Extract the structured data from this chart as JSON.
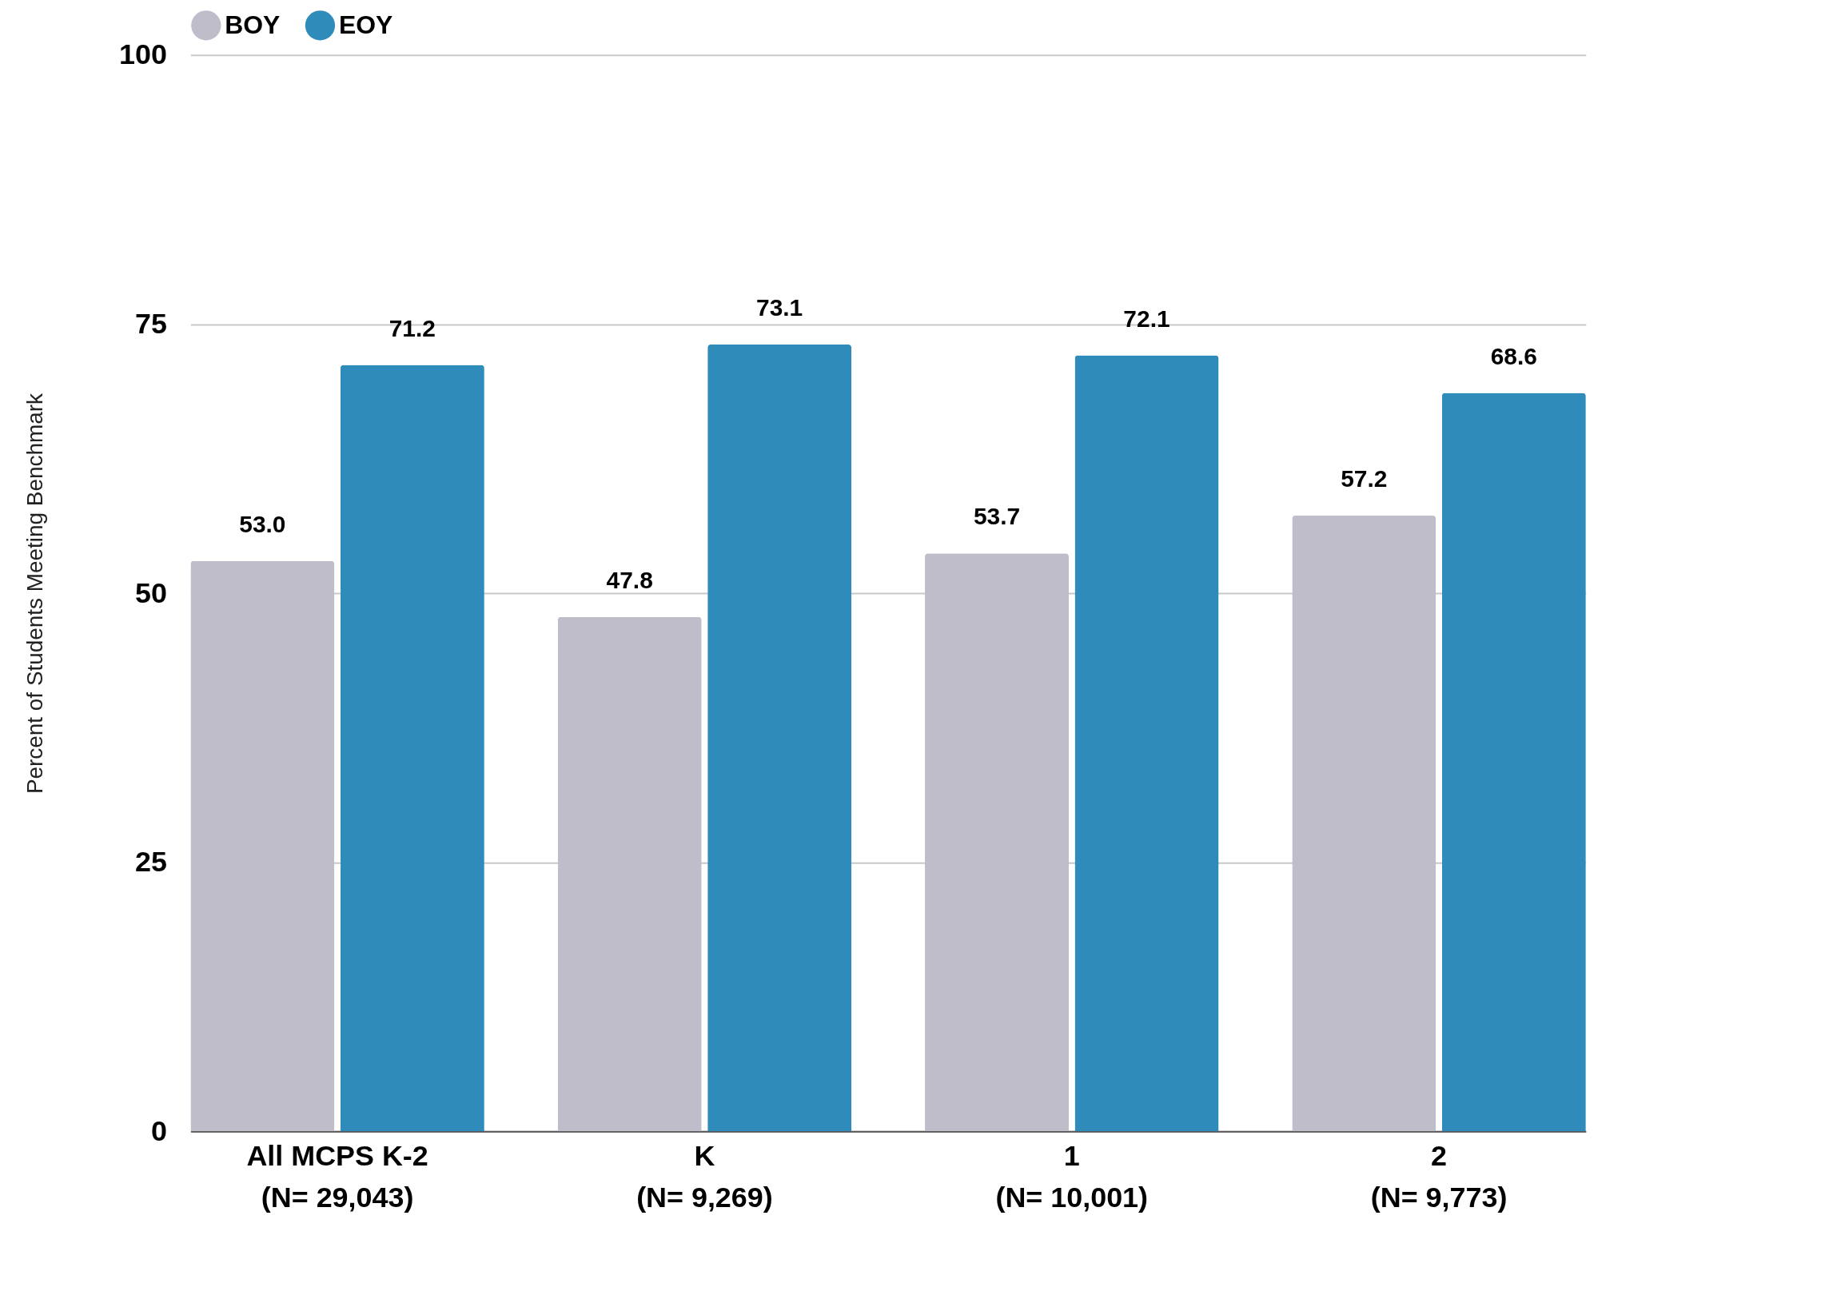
{
  "chart_data": {
    "type": "bar",
    "ylabel": "Percent of Students Meeting Benchmark",
    "categories": [
      "All MCPS K-2\n(N= 29,043)",
      "K\n(N= 9,269)",
      "1\n(N= 10,001)",
      "2\n(N= 9,773)"
    ],
    "series": [
      {
        "name": "BOY",
        "color": "#bfbdc9",
        "values": [
          53.0,
          47.8,
          53.7,
          57.2
        ],
        "value_labels": [
          "53.0",
          "47.8",
          "53.7",
          "57.2"
        ]
      },
      {
        "name": "EOY",
        "color": "#2e8bba",
        "values": [
          71.2,
          73.1,
          72.1,
          68.6
        ],
        "value_labels": [
          "71.2",
          "73.1",
          "72.1",
          "68.6"
        ]
      }
    ],
    "ylim": [
      0,
      100
    ],
    "yticks": [
      0,
      25,
      50,
      75,
      100
    ],
    "grid": "y",
    "legend": "top"
  }
}
